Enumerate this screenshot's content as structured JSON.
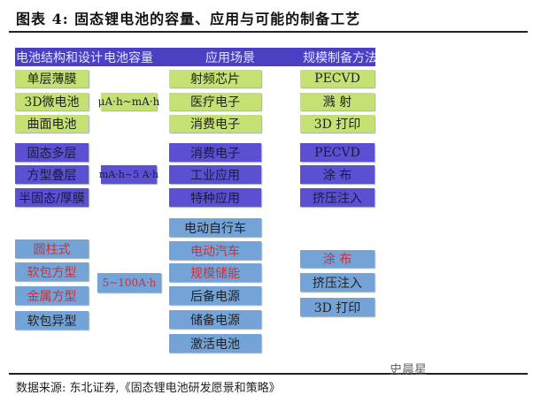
{
  "title": "图表 4: 固态锂电池的容量、应用与可能的制备工艺",
  "headers": [
    "电池结构和设计",
    "电池容量",
    "应用场景",
    "规模制备方法"
  ],
  "colors": {
    "header": "#4b3fc4",
    "group1": "#c6e173",
    "group2": "#5b50d2",
    "group3": "#74a3d8",
    "highlight_text": "#c8323a"
  },
  "groups": [
    {
      "structures": [
        "单层薄膜",
        "3D微电池",
        "曲面电池"
      ],
      "capacity": "μA·h~mA·h",
      "applications": [
        "射频芯片",
        "医疗电子",
        "消费电子"
      ],
      "methods": [
        "PECVD",
        "溅 射",
        "3D 打印"
      ]
    },
    {
      "structures": [
        "固态多层",
        "方型叠层",
        "半固态/厚膜"
      ],
      "capacity": "mA·h~5 A·h",
      "applications": [
        "消费电子",
        "工业应用",
        "特种应用"
      ],
      "methods": [
        "PECVD",
        "涂 布",
        "挤压注入"
      ]
    },
    {
      "structures": [
        "圆柱式",
        "软包方型",
        "金属方型",
        "软包异型"
      ],
      "capacity": "5~100A·h",
      "applications": [
        "电动自行车",
        "电动汽车",
        "规模储能",
        "后备电源",
        "储备电源",
        "激活电池"
      ],
      "methods": [
        "涂 布",
        "挤压注入",
        "3D 打印"
      ]
    }
  ],
  "source": "数据来源: 东北证券,《固态锂电池研发愿景和策略》",
  "watermark": "史晨星"
}
